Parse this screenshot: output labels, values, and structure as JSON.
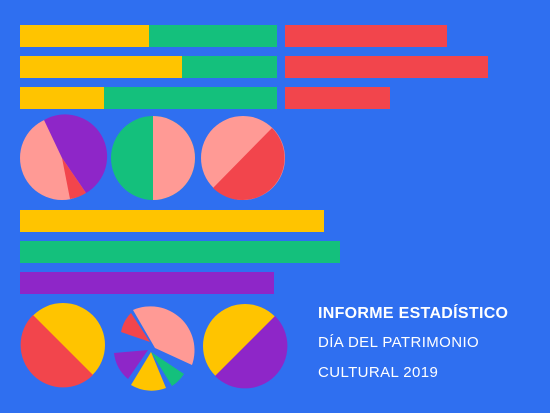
{
  "palette": {
    "background": "#2f6ff0",
    "yellow": "#ffc400",
    "green": "#14c07c",
    "red": "#f2454c",
    "pink": "#ff9a95",
    "purple": "#8e26c8"
  },
  "title": {
    "line1": "INFORME ESTADÍSTICO",
    "line2": "DÍA DEL PATRIMONIO",
    "line3": "CULTURAL 2019"
  }
}
